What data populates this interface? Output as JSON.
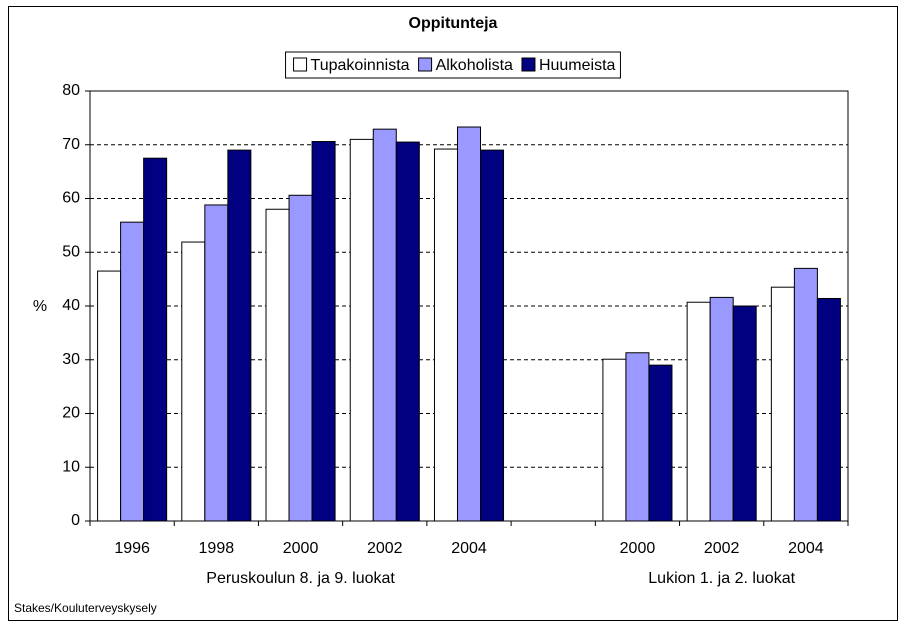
{
  "chart_data": {
    "type": "bar",
    "title": "Oppitunteja",
    "y_label": "%",
    "categories": [
      "1996",
      "1998",
      "2000",
      "2002",
      "2004",
      null,
      "2000",
      "2002",
      "2004"
    ],
    "group_labels": [
      "Peruskoulun 8. ja 9. luokat",
      "Lukion 1. ja 2. luokat"
    ],
    "source": "Stakes/Kouluterveyskysely",
    "series": [
      {
        "name": "Tupakoinnista",
        "color": "#ffffff",
        "values": [
          46.5,
          51.9,
          58.0,
          71.0,
          69.2,
          null,
          30.1,
          40.7,
          43.5
        ]
      },
      {
        "name": "Alkoholista",
        "color": "#9999ff",
        "values": [
          55.6,
          58.8,
          60.6,
          72.9,
          73.3,
          null,
          31.3,
          41.6,
          47.0
        ]
      },
      {
        "name": "Huumeista",
        "color": "#000080",
        "values": [
          67.5,
          69.0,
          70.6,
          70.5,
          69.0,
          null,
          29.0,
          40.0,
          41.4
        ]
      }
    ],
    "ylim": [
      0,
      80
    ],
    "yticks": [
      0,
      10,
      20,
      30,
      40,
      50,
      60,
      70,
      80
    ],
    "grid": true
  }
}
